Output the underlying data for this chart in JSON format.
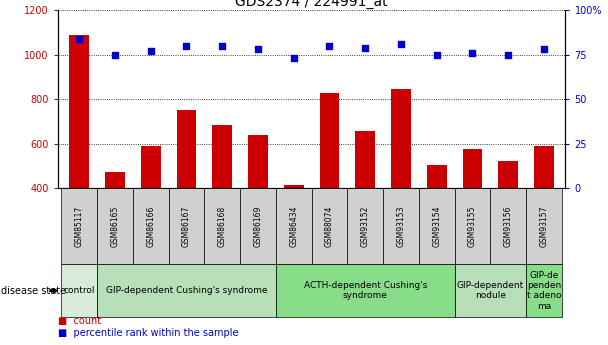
{
  "title": "GDS2374 / 224991_at",
  "samples": [
    "GSM85117",
    "GSM86165",
    "GSM86166",
    "GSM86167",
    "GSM86168",
    "GSM86169",
    "GSM86434",
    "GSM88074",
    "GSM93152",
    "GSM93153",
    "GSM93154",
    "GSM93155",
    "GSM93156",
    "GSM93157"
  ],
  "counts": [
    1090,
    470,
    590,
    750,
    685,
    640,
    415,
    830,
    655,
    845,
    505,
    575,
    520,
    590
  ],
  "percentiles": [
    84,
    75,
    77,
    80,
    80,
    78,
    73,
    80,
    79,
    81,
    75,
    76,
    75,
    78
  ],
  "bar_color": "#cc0000",
  "dot_color": "#0000cc",
  "ylim_left": [
    400,
    1200
  ],
  "ylim_right": [
    0,
    100
  ],
  "yticks_left": [
    400,
    600,
    800,
    1000,
    1200
  ],
  "yticks_right": [
    0,
    25,
    50,
    75,
    100
  ],
  "groups": [
    {
      "label": "control",
      "start": 0,
      "end": 1,
      "color": "#d8ead8"
    },
    {
      "label": "GIP-dependent Cushing's syndrome",
      "start": 1,
      "end": 6,
      "color": "#b8e0b8"
    },
    {
      "label": "ACTH-dependent Cushing's\nsyndrome",
      "start": 6,
      "end": 11,
      "color": "#88dd88"
    },
    {
      "label": "GIP-dependent\nnodule",
      "start": 11,
      "end": 13,
      "color": "#b8e0b8"
    },
    {
      "label": "GIP-de\npenden\nt adeno\nma",
      "start": 13,
      "end": 14,
      "color": "#88dd88"
    }
  ],
  "xlabel_disease": "disease state",
  "bg_color": "#ffffff",
  "tick_bg_color": "#d0d0d0",
  "tick_label_color_left": "#cc0000",
  "tick_label_color_right": "#0000cc",
  "title_fontsize": 10,
  "group_fontsize": 6.5
}
